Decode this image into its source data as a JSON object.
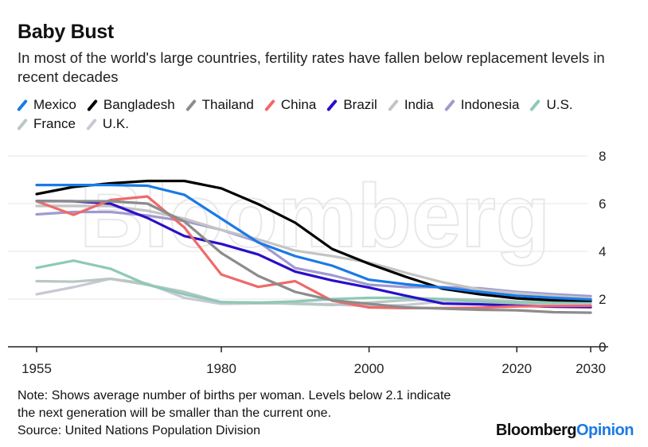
{
  "title": "Baby Bust",
  "subtitle": "In most of the world's large countries, fertility rates have fallen below replacement levels in recent decades",
  "watermark": "Bloomberg",
  "notes": [
    "Note: Shows average number of births per woman. Levels below 2.1 indicate",
    "the next generation will be smaller than the current one.",
    "Source: United Nations Population Division"
  ],
  "brand": {
    "part1": "Bloomberg",
    "part2": "Opinion"
  },
  "chart_data": {
    "type": "line",
    "title": "Baby Bust",
    "xlabel": "",
    "ylabel": "",
    "xlim": [
      1955,
      2030
    ],
    "ylim": [
      0,
      8
    ],
    "xticks": [
      1955,
      1980,
      2000,
      2020,
      2030
    ],
    "yticks": [
      0,
      2,
      4,
      6,
      8
    ],
    "grid": "horizontal",
    "legend_position": "top",
    "x": [
      1955,
      1960,
      1965,
      1970,
      1975,
      1980,
      1985,
      1990,
      1995,
      2000,
      2005,
      2010,
      2015,
      2020,
      2025,
      2030
    ],
    "series": [
      {
        "name": "Mexico",
        "color": "#1a7ae6",
        "values": [
          6.78,
          6.78,
          6.78,
          6.75,
          6.37,
          5.37,
          4.37,
          3.8,
          3.4,
          2.81,
          2.62,
          2.48,
          2.3,
          2.14,
          2.05,
          1.98
        ]
      },
      {
        "name": "Bangladesh",
        "color": "#000000",
        "values": [
          6.4,
          6.7,
          6.85,
          6.95,
          6.95,
          6.64,
          5.98,
          5.2,
          4.1,
          3.48,
          2.93,
          2.43,
          2.2,
          2.03,
          1.95,
          1.93
        ]
      },
      {
        "name": "Thailand",
        "color": "#8c8c8c",
        "values": [
          6.1,
          6.1,
          6.1,
          6.0,
          5.25,
          3.93,
          2.97,
          2.3,
          1.95,
          1.8,
          1.65,
          1.6,
          1.55,
          1.53,
          1.45,
          1.43
        ]
      },
      {
        "name": "China",
        "color": "#ee6a6a",
        "values": [
          6.1,
          5.53,
          6.15,
          6.3,
          5.0,
          3.03,
          2.51,
          2.75,
          1.93,
          1.65,
          1.62,
          1.62,
          1.64,
          1.69,
          1.71,
          1.72
        ]
      },
      {
        "name": "Brazil",
        "color": "#2a0fc8",
        "values": [
          6.11,
          6.1,
          6.0,
          5.4,
          4.64,
          4.31,
          3.87,
          3.15,
          2.78,
          2.48,
          2.14,
          1.81,
          1.78,
          1.72,
          1.68,
          1.66
        ]
      },
      {
        "name": "India",
        "color": "#c4c4c4",
        "values": [
          5.9,
          5.9,
          5.9,
          5.7,
          5.37,
          4.9,
          4.5,
          4.03,
          3.8,
          3.53,
          3.1,
          2.7,
          2.4,
          2.25,
          2.13,
          2.04
        ]
      },
      {
        "name": "Indonesia",
        "color": "#a09ad0",
        "values": [
          5.55,
          5.65,
          5.65,
          5.5,
          5.27,
          4.9,
          4.4,
          3.3,
          3.0,
          2.6,
          2.5,
          2.5,
          2.45,
          2.3,
          2.2,
          2.12
        ]
      },
      {
        "name": "U.S.",
        "color": "#8ec9b5",
        "values": [
          3.31,
          3.61,
          3.27,
          2.6,
          2.2,
          1.87,
          1.85,
          1.9,
          2.0,
          2.05,
          2.05,
          2.0,
          1.9,
          1.85,
          1.85,
          1.87
        ]
      },
      {
        "name": "France",
        "color": "#b8c8c4",
        "values": [
          2.75,
          2.73,
          2.85,
          2.6,
          2.3,
          1.87,
          1.85,
          1.8,
          1.75,
          1.85,
          1.95,
          2.0,
          1.98,
          1.9,
          1.87,
          1.87
        ]
      },
      {
        "name": "U.K.",
        "color": "#c8c8d6",
        "values": [
          2.2,
          2.5,
          2.85,
          2.65,
          2.05,
          1.8,
          1.82,
          1.82,
          1.78,
          1.7,
          1.75,
          1.9,
          1.85,
          1.8,
          1.8,
          1.8
        ]
      }
    ]
  }
}
